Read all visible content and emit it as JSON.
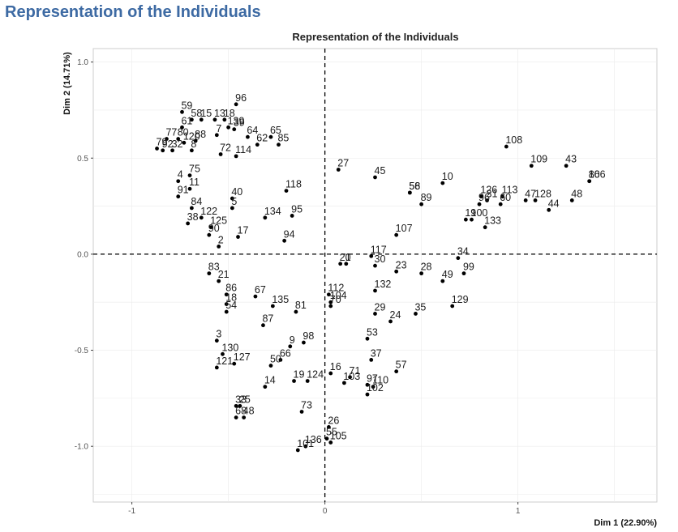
{
  "page": {
    "heading": "Representation of the Individuals"
  },
  "chart_data": {
    "type": "scatter",
    "title": "Representation of the Individuals",
    "xlabel": "Dim 1 (22.90%)",
    "ylabel": "Dim 2 (14.71%)",
    "xlim": [
      -1.2,
      1.72
    ],
    "ylim": [
      -1.29,
      1.07
    ],
    "xticks": [
      -1,
      0,
      1
    ],
    "yticks": [
      -1.0,
      -0.5,
      0.0,
      0.5,
      1.0
    ],
    "xtick_labels": [
      "-1",
      "0",
      "1"
    ],
    "ytick_labels": [
      "-1.0",
      "-0.5",
      "0.0",
      "0.5",
      "1.0"
    ],
    "grid": true,
    "reference_lines": {
      "x": 0,
      "y": 0,
      "style": "dashed"
    },
    "colors": {
      "point": "#000000",
      "heading": "#3d6aa3",
      "grid": "#ebebeb",
      "panel_border": "#cccccc"
    },
    "points": [
      {
        "label": "96",
        "x": -0.46,
        "y": 0.78
      },
      {
        "label": "59",
        "x": -0.74,
        "y": 0.74
      },
      {
        "label": "58",
        "x": -0.69,
        "y": 0.7
      },
      {
        "label": "15",
        "x": -0.64,
        "y": 0.7
      },
      {
        "label": "13",
        "x": -0.57,
        "y": 0.7
      },
      {
        "label": "18",
        "x": -0.52,
        "y": 0.7
      },
      {
        "label": "61",
        "x": -0.74,
        "y": 0.66
      },
      {
        "label": "139",
        "x": -0.5,
        "y": 0.66
      },
      {
        "label": "39",
        "x": -0.47,
        "y": 0.65
      },
      {
        "label": "7",
        "x": -0.56,
        "y": 0.62
      },
      {
        "label": "64",
        "x": -0.4,
        "y": 0.61
      },
      {
        "label": "65",
        "x": -0.28,
        "y": 0.61
      },
      {
        "label": "85",
        "x": -0.24,
        "y": 0.57
      },
      {
        "label": "77",
        "x": -0.82,
        "y": 0.6
      },
      {
        "label": "80",
        "x": -0.76,
        "y": 0.6
      },
      {
        "label": "88",
        "x": -0.67,
        "y": 0.59
      },
      {
        "label": "120",
        "x": -0.73,
        "y": 0.58
      },
      {
        "label": "62",
        "x": -0.35,
        "y": 0.57
      },
      {
        "label": "79",
        "x": -0.87,
        "y": 0.55
      },
      {
        "label": "92",
        "x": -0.84,
        "y": 0.54
      },
      {
        "label": "32",
        "x": -0.79,
        "y": 0.54
      },
      {
        "label": "8",
        "x": -0.69,
        "y": 0.54
      },
      {
        "label": "72",
        "x": -0.54,
        "y": 0.52
      },
      {
        "label": "114",
        "x": -0.46,
        "y": 0.51
      },
      {
        "label": "75",
        "x": -0.7,
        "y": 0.41
      },
      {
        "label": "4",
        "x": -0.76,
        "y": 0.38
      },
      {
        "label": "11",
        "x": -0.7,
        "y": 0.34
      },
      {
        "label": "91",
        "x": -0.76,
        "y": 0.3
      },
      {
        "label": "118",
        "x": -0.2,
        "y": 0.33
      },
      {
        "label": "40",
        "x": -0.48,
        "y": 0.29
      },
      {
        "label": "5",
        "x": -0.48,
        "y": 0.24
      },
      {
        "label": "84",
        "x": -0.69,
        "y": 0.24
      },
      {
        "label": "122",
        "x": -0.64,
        "y": 0.19
      },
      {
        "label": "134",
        "x": -0.31,
        "y": 0.19
      },
      {
        "label": "95",
        "x": -0.17,
        "y": 0.2
      },
      {
        "label": "38",
        "x": -0.71,
        "y": 0.16
      },
      {
        "label": "125",
        "x": -0.59,
        "y": 0.14
      },
      {
        "label": "90",
        "x": -0.6,
        "y": 0.1
      },
      {
        "label": "17",
        "x": -0.45,
        "y": 0.09
      },
      {
        "label": "94",
        "x": -0.21,
        "y": 0.07
      },
      {
        "label": "2",
        "x": -0.55,
        "y": 0.04
      },
      {
        "label": "108",
        "x": 0.94,
        "y": 0.56
      },
      {
        "label": "109",
        "x": 1.07,
        "y": 0.46
      },
      {
        "label": "43",
        "x": 1.25,
        "y": 0.46
      },
      {
        "label": "27",
        "x": 0.07,
        "y": 0.44
      },
      {
        "label": "45",
        "x": 0.26,
        "y": 0.4
      },
      {
        "label": "10",
        "x": 0.61,
        "y": 0.37
      },
      {
        "label": "56",
        "x": 0.44,
        "y": 0.32
      },
      {
        "label": "58",
        "x": 0.44,
        "y": 0.32
      },
      {
        "label": "89",
        "x": 0.5,
        "y": 0.26
      },
      {
        "label": "106",
        "x": 1.37,
        "y": 0.38
      },
      {
        "label": "86",
        "x": 1.37,
        "y": 0.38
      },
      {
        "label": "126",
        "x": 0.81,
        "y": 0.3
      },
      {
        "label": "113",
        "x": 0.92,
        "y": 0.3
      },
      {
        "label": "31",
        "x": 0.84,
        "y": 0.28
      },
      {
        "label": "96",
        "x": 0.8,
        "y": 0.26
      },
      {
        "label": "47",
        "x": 1.04,
        "y": 0.28
      },
      {
        "label": "128",
        "x": 1.09,
        "y": 0.28
      },
      {
        "label": "48",
        "x": 1.28,
        "y": 0.28
      },
      {
        "label": "60",
        "x": 0.91,
        "y": 0.26
      },
      {
        "label": "44",
        "x": 1.16,
        "y": 0.23
      },
      {
        "label": "19",
        "x": 0.73,
        "y": 0.18
      },
      {
        "label": "100",
        "x": 0.76,
        "y": 0.18
      },
      {
        "label": "133",
        "x": 0.83,
        "y": 0.14
      },
      {
        "label": "107",
        "x": 0.37,
        "y": 0.1
      },
      {
        "label": "117",
        "x": 0.24,
        "y": -0.01
      },
      {
        "label": "34",
        "x": 0.69,
        "y": -0.02
      },
      {
        "label": "20",
        "x": 0.08,
        "y": -0.05
      },
      {
        "label": "1",
        "x": 0.11,
        "y": -0.05
      },
      {
        "label": "30",
        "x": 0.26,
        "y": -0.06
      },
      {
        "label": "23",
        "x": 0.37,
        "y": -0.09
      },
      {
        "label": "28",
        "x": 0.5,
        "y": -0.1
      },
      {
        "label": "99",
        "x": 0.72,
        "y": -0.1
      },
      {
        "label": "49",
        "x": 0.61,
        "y": -0.14
      },
      {
        "label": "132",
        "x": 0.26,
        "y": -0.19
      },
      {
        "label": "112",
        "x": 0.02,
        "y": -0.21
      },
      {
        "label": "104",
        "x": 0.03,
        "y": -0.25
      },
      {
        "label": "70",
        "x": 0.03,
        "y": -0.27
      },
      {
        "label": "129",
        "x": 0.66,
        "y": -0.27
      },
      {
        "label": "29",
        "x": 0.26,
        "y": -0.31
      },
      {
        "label": "35",
        "x": 0.47,
        "y": -0.31
      },
      {
        "label": "24",
        "x": 0.34,
        "y": -0.35
      },
      {
        "label": "53",
        "x": 0.22,
        "y": -0.44
      },
      {
        "label": "37",
        "x": 0.24,
        "y": -0.55
      },
      {
        "label": "57",
        "x": 0.37,
        "y": -0.61
      },
      {
        "label": "16",
        "x": 0.03,
        "y": -0.62
      },
      {
        "label": "71",
        "x": 0.13,
        "y": -0.64
      },
      {
        "label": "103",
        "x": 0.1,
        "y": -0.67
      },
      {
        "label": "97",
        "x": 0.22,
        "y": -0.68
      },
      {
        "label": "110",
        "x": 0.25,
        "y": -0.69
      },
      {
        "label": "102",
        "x": 0.22,
        "y": -0.73
      },
      {
        "label": "26",
        "x": 0.02,
        "y": -0.9
      },
      {
        "label": "55",
        "x": 0.01,
        "y": -0.96
      },
      {
        "label": "105",
        "x": 0.03,
        "y": -0.98
      },
      {
        "label": "83",
        "x": -0.6,
        "y": -0.1
      },
      {
        "label": "21",
        "x": -0.55,
        "y": -0.14
      },
      {
        "label": "86",
        "x": -0.51,
        "y": -0.21
      },
      {
        "label": "67",
        "x": -0.36,
        "y": -0.22
      },
      {
        "label": "18",
        "x": -0.51,
        "y": -0.26
      },
      {
        "label": "135",
        "x": -0.27,
        "y": -0.27
      },
      {
        "label": "54",
        "x": -0.51,
        "y": -0.3
      },
      {
        "label": "81",
        "x": -0.15,
        "y": -0.3
      },
      {
        "label": "87",
        "x": -0.32,
        "y": -0.37
      },
      {
        "label": "3",
        "x": -0.56,
        "y": -0.45
      },
      {
        "label": "98",
        "x": -0.11,
        "y": -0.46
      },
      {
        "label": "9",
        "x": -0.18,
        "y": -0.48
      },
      {
        "label": "130",
        "x": -0.53,
        "y": -0.52
      },
      {
        "label": "66",
        "x": -0.23,
        "y": -0.55
      },
      {
        "label": "50",
        "x": -0.28,
        "y": -0.58
      },
      {
        "label": "127",
        "x": -0.47,
        "y": -0.57
      },
      {
        "label": "121",
        "x": -0.56,
        "y": -0.59
      },
      {
        "label": "124",
        "x": -0.09,
        "y": -0.66
      },
      {
        "label": "19",
        "x": -0.16,
        "y": -0.66
      },
      {
        "label": "14",
        "x": -0.31,
        "y": -0.69
      },
      {
        "label": "25",
        "x": -0.44,
        "y": -0.79
      },
      {
        "label": "33",
        "x": -0.46,
        "y": -0.79
      },
      {
        "label": "73",
        "x": -0.12,
        "y": -0.82
      },
      {
        "label": "48",
        "x": -0.42,
        "y": -0.85
      },
      {
        "label": "68",
        "x": -0.46,
        "y": -0.85
      },
      {
        "label": "136",
        "x": -0.1,
        "y": -1.0
      },
      {
        "label": "101",
        "x": -0.14,
        "y": -1.02
      }
    ]
  }
}
